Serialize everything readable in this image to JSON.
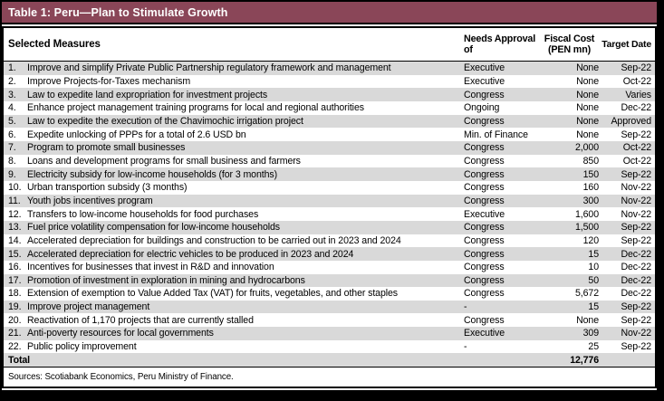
{
  "colors": {
    "title_bar_bg": "#8a4658",
    "title_bar_text": "#ffffff",
    "row_stripe": "#d9d9d9",
    "border": "#000000"
  },
  "header": {
    "measures": "Selected Measures",
    "approval_l1": "Needs Approval",
    "approval_l2": "of",
    "cost_l1": "Fiscal Cost",
    "cost_l2": "(PEN mn)",
    "date": "Target Date"
  },
  "chart_data": {
    "type": "table",
    "title": "Table 1: Peru—Plan to Stimulate Growth",
    "columns": [
      "Selected Measures",
      "Needs Approval of",
      "Fiscal Cost (PEN mn)",
      "Target Date"
    ],
    "rows": [
      {
        "num": "1.",
        "measure": "Improve and simplify Private Public Partnership regulatory framework and management",
        "approval": "Executive",
        "cost": "None",
        "date": "Sep-22"
      },
      {
        "num": "2.",
        "measure": "Improve Projects-for-Taxes mechanism",
        "approval": "Executive",
        "cost": "None",
        "date": "Oct-22"
      },
      {
        "num": "3.",
        "measure": "Law to expedite land expropriation for investment projects",
        "approval": "Congress",
        "cost": "None",
        "date": "Varies"
      },
      {
        "num": "4.",
        "measure": "Enhance project management training programs for local and regional authorities",
        "approval": "Ongoing",
        "cost": "None",
        "date": "Dec-22"
      },
      {
        "num": "5.",
        "measure": "Law to expedite the execution of the Chavimochic irrigation project",
        "approval": "Congress",
        "cost": "None",
        "date": "Approved"
      },
      {
        "num": "6.",
        "measure": "Expedite unlocking of PPPs for a total of 2.6 USD bn",
        "approval": "Min. of Finance",
        "cost": "None",
        "date": "Sep-22"
      },
      {
        "num": "7.",
        "measure": "Program to promote small businesses",
        "approval": "Congress",
        "cost": "2,000",
        "date": "Oct-22"
      },
      {
        "num": "8.",
        "measure": "Loans and development programs for small business and farmers",
        "approval": "Congress",
        "cost": "850",
        "date": "Oct-22"
      },
      {
        "num": "9.",
        "measure": "Electricity subsidy for low-income households (for 3 months)",
        "approval": "Congress",
        "cost": "150",
        "date": "Sep-22"
      },
      {
        "num": "10.",
        "measure": "Urban transportion subsidy (3 months)",
        "approval": "Congress",
        "cost": "160",
        "date": "Nov-22"
      },
      {
        "num": "11.",
        "measure": "Youth jobs incentives program",
        "approval": "Congress",
        "cost": "300",
        "date": "Nov-22"
      },
      {
        "num": "12.",
        "measure": "Transfers to low-income households for food purchases",
        "approval": "Executive",
        "cost": "1,600",
        "date": "Nov-22"
      },
      {
        "num": "13.",
        "measure": "Fuel price volatility compensation for low-income households",
        "approval": "Congress",
        "cost": "1,500",
        "date": "Sep-22"
      },
      {
        "num": "14.",
        "measure": "Accelerated depreciation for buildings and construction to be carried out in 2023 and 2024",
        "approval": "Congress",
        "cost": "120",
        "date": "Sep-22"
      },
      {
        "num": "15.",
        "measure": "Accelerated depreciation for electric vehicles to be produced in 2023 and 2024",
        "approval": "Congress",
        "cost": "15",
        "date": "Dec-22"
      },
      {
        "num": "16.",
        "measure": "Incentives for businesses that invest in R&D and innovation",
        "approval": "Congress",
        "cost": "10",
        "date": "Dec-22"
      },
      {
        "num": "17.",
        "measure": "Promotion of investment in exploration in mining and hydrocarbons",
        "approval": "Congress",
        "cost": "50",
        "date": "Dec-22"
      },
      {
        "num": "18.",
        "measure": "Extension of exemption to Value Added Tax (VAT) for fruits, vegetables, and other staples",
        "approval": "Congress",
        "cost": "5,672",
        "date": "Dec-22"
      },
      {
        "num": "19.",
        "measure": "Improve project management",
        "approval": "-",
        "cost": "15",
        "date": "Sep-22"
      },
      {
        "num": "20.",
        "measure": "Reactivation of 1,170 projects that are currently stalled",
        "approval": "Congress",
        "cost": "None",
        "date": "Sep-22"
      },
      {
        "num": "21.",
        "measure": "Anti-poverty resources for local governments",
        "approval": "Executive",
        "cost": "309",
        "date": "Nov-22"
      },
      {
        "num": "22.",
        "measure": "Public policy improvement",
        "approval": "-",
        "cost": "25",
        "date": "Sep-22"
      }
    ],
    "total": {
      "label": "Total",
      "cost": "12,776"
    },
    "source": "Sources: Scotiabank Economics, Peru Ministry of Finance."
  }
}
